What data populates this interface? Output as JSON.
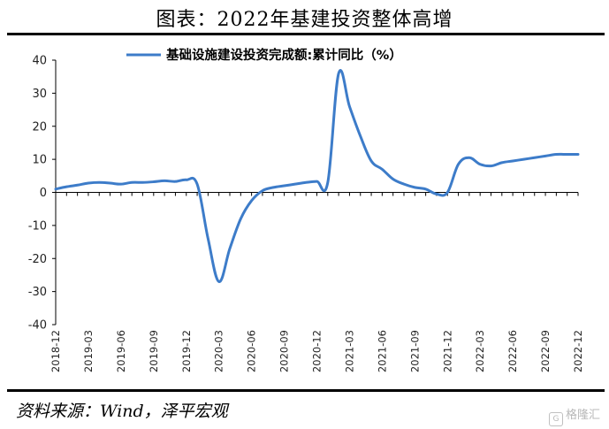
{
  "header": {
    "title": "图表：2022年基建投资整体高增"
  },
  "footer": {
    "source": "资料来源：Wind，泽平宏观",
    "watermark": "格隆汇"
  },
  "colors": {
    "line": "#3d7cc9",
    "axis": "#000000",
    "text": "#222222"
  },
  "chart_data": {
    "type": "line",
    "title": "",
    "xlabel": "",
    "ylabel": "",
    "ylim": [
      -40,
      40
    ],
    "yticks": [
      -40,
      -30,
      -20,
      -10,
      0,
      10,
      20,
      30,
      40
    ],
    "grid": false,
    "legend_position": "top-center",
    "x_tick_labels": [
      "2018-12",
      "2019-03",
      "2019-06",
      "2019-09",
      "2019-12",
      "2020-03",
      "2020-06",
      "2020-09",
      "2020-12",
      "2021-03",
      "2021-06",
      "2021-09",
      "2021-12",
      "2022-03",
      "2022-06",
      "2022-09",
      "2022-12"
    ],
    "series": [
      {
        "name": "基础设施建设投资完成额:累计同比（%）",
        "x": [
          "2018-12",
          "2019-01",
          "2019-02",
          "2019-03",
          "2019-04",
          "2019-05",
          "2019-06",
          "2019-07",
          "2019-08",
          "2019-09",
          "2019-10",
          "2019-11",
          "2019-12",
          "2020-01",
          "2020-02",
          "2020-03",
          "2020-04",
          "2020-05",
          "2020-06",
          "2020-07",
          "2020-08",
          "2020-09",
          "2020-10",
          "2020-11",
          "2020-12",
          "2021-01",
          "2021-02",
          "2021-03",
          "2021-04",
          "2021-05",
          "2021-06",
          "2021-07",
          "2021-08",
          "2021-09",
          "2021-10",
          "2021-11",
          "2021-12",
          "2022-01",
          "2022-02",
          "2022-03",
          "2022-04",
          "2022-05",
          "2022-06",
          "2022-07",
          "2022-08",
          "2022-09",
          "2022-10",
          "2022-11",
          "2022-12"
        ],
        "values": [
          1.0,
          1.7,
          2.2,
          2.8,
          3.0,
          2.8,
          2.5,
          3.0,
          3.0,
          3.2,
          3.5,
          3.3,
          3.8,
          2.5,
          -14.0,
          -27.0,
          -17.0,
          -8.0,
          -2.5,
          0.5,
          1.5,
          2.0,
          2.5,
          3.0,
          3.3,
          3.0,
          36.0,
          26.0,
          17.0,
          9.5,
          7.0,
          4.0,
          2.5,
          1.5,
          1.0,
          -0.5,
          0.0,
          8.5,
          10.5,
          8.5,
          8.0,
          9.0,
          9.5,
          10.0,
          10.5,
          11.0,
          11.5,
          11.5,
          11.5
        ]
      }
    ]
  }
}
